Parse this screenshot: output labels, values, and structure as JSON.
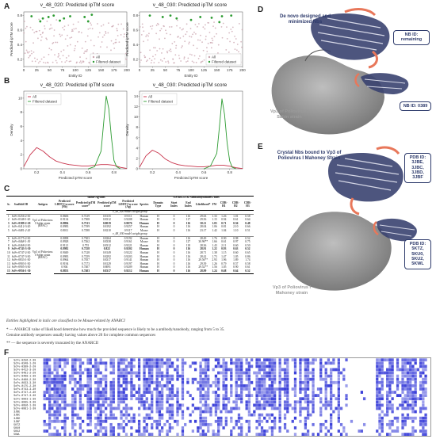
{
  "panels": {
    "A": "A",
    "B": "B",
    "C": "C",
    "D": "D",
    "E": "E",
    "F": "F"
  },
  "scatter_left": {
    "title": "v_48_020: Predicted ipTM score"
  },
  "scatter_right": {
    "title": "v_48_030: Predicted ipTM score"
  },
  "kde_left": {
    "title": "v_48_020: Predicted ipTM score"
  },
  "kde_right": {
    "title": "v_48_030: Predicted ipTM score"
  },
  "chart_data": [
    {
      "type": "scatter",
      "title": "v_48_020: Predicted ipTM score",
      "xlabel": "Entity ID",
      "ylabel": "Predicted ipTM score",
      "xlim": [
        0,
        200
      ],
      "ylim": [
        0.1,
        0.85
      ],
      "xticks": [
        0,
        25,
        50,
        75,
        100,
        125,
        150,
        175,
        200
      ],
      "yticks": [
        0.2,
        0.4,
        0.6,
        0.8
      ],
      "legend": [
        "All",
        "Filtered dataset"
      ],
      "legend_position": "bottom-right",
      "series": [
        {
          "name": "All",
          "color": "#c9a3ad"
        },
        {
          "name": "Filtered dataset",
          "color": "#2e9c33",
          "x": [
            15,
            32,
            37,
            48,
            58,
            70,
            78,
            90,
            118,
            125,
            132
          ],
          "y": [
            0.79,
            0.72,
            0.76,
            0.78,
            0.8,
            0.73,
            0.76,
            0.79,
            0.78,
            0.72,
            0.81
          ]
        }
      ]
    },
    {
      "type": "scatter",
      "title": "v_48_030: Predicted ipTM score",
      "xlabel": "Entity ID",
      "ylabel": "Predicted ipTM score",
      "xlim": [
        0,
        200
      ],
      "ylim": [
        0.1,
        0.85
      ],
      "xticks": [
        0,
        25,
        50,
        75,
        100,
        125,
        150,
        175,
        200
      ],
      "yticks": [
        0.2,
        0.4,
        0.6,
        0.8
      ],
      "legend": [
        "All",
        "Filtered dataset"
      ],
      "legend_position": "bottom-right",
      "series": [
        {
          "name": "All",
          "color": "#c9a3ad"
        },
        {
          "name": "Filtered dataset",
          "color": "#2e9c33",
          "x": [
            20,
            45,
            60,
            72,
            100,
            118,
            140,
            155,
            160,
            178
          ],
          "y": [
            0.8,
            0.78,
            0.8,
            0.76,
            0.74,
            0.78,
            0.77,
            0.71,
            0.79,
            0.8
          ]
        }
      ]
    },
    {
      "type": "line",
      "title": "v_48_020: Predicted ipTM score",
      "xlabel": "Predicted ipTM score",
      "ylabel": "Density",
      "xticks": [
        0.2,
        0.4,
        0.6,
        0.8
      ],
      "yticks": [
        0,
        2,
        4,
        6,
        8,
        10
      ],
      "xlim": [
        0.1,
        0.9
      ],
      "ylim": [
        0,
        11
      ],
      "legend": [
        "All",
        "Filtered dataset"
      ],
      "legend_position": "top-left",
      "series": [
        {
          "name": "All",
          "color": "#c8324a",
          "x": [
            0.1,
            0.15,
            0.2,
            0.25,
            0.3,
            0.35,
            0.4,
            0.45,
            0.5,
            0.55,
            0.6,
            0.65,
            0.7,
            0.75,
            0.8,
            0.85,
            0.9
          ],
          "y": [
            0.3,
            2.0,
            3.0,
            2.5,
            1.7,
            1.1,
            0.8,
            0.6,
            0.5,
            0.4,
            0.4,
            0.5,
            0.6,
            0.6,
            0.5,
            0.2,
            0.05
          ]
        },
        {
          "name": "Filtered dataset",
          "color": "#2e9c33",
          "x": [
            0.6,
            0.65,
            0.7,
            0.72,
            0.74,
            0.76,
            0.78,
            0.8,
            0.82,
            0.85
          ],
          "y": [
            0,
            0.3,
            2.5,
            6.5,
            10.3,
            8.5,
            4.5,
            1.2,
            0.3,
            0
          ]
        }
      ]
    },
    {
      "type": "line",
      "title": "v_48_030: Predicted ipTM score",
      "xlabel": "Predicted ipTM score",
      "ylabel": "Density",
      "xticks": [
        0.2,
        0.4,
        0.6,
        0.8
      ],
      "yticks": [
        0,
        2,
        4,
        6,
        8,
        10,
        12,
        14
      ],
      "xlim": [
        0.1,
        0.9
      ],
      "ylim": [
        0,
        15
      ],
      "legend": [
        "All",
        "Filtered dataset"
      ],
      "legend_position": "top-left",
      "series": [
        {
          "name": "All",
          "color": "#c8324a",
          "x": [
            0.1,
            0.15,
            0.2,
            0.25,
            0.3,
            0.35,
            0.4,
            0.45,
            0.5,
            0.55,
            0.6,
            0.65,
            0.7,
            0.75,
            0.8,
            0.85,
            0.9
          ],
          "y": [
            0.3,
            2.5,
            3.6,
            3.0,
            1.9,
            1.2,
            0.8,
            0.6,
            0.5,
            0.4,
            0.4,
            0.5,
            0.7,
            0.7,
            0.5,
            0.2,
            0.05
          ]
        },
        {
          "name": "Filtered dataset",
          "color": "#2e9c33",
          "x": [
            0.6,
            0.65,
            0.7,
            0.72,
            0.74,
            0.76,
            0.78,
            0.8,
            0.82,
            0.85
          ],
          "y": [
            0,
            0.5,
            3.0,
            8.0,
            13.5,
            10.5,
            5.0,
            1.5,
            0.3,
            0
          ]
        }
      ]
    }
  ],
  "colors": {
    "scfv_blue": "#3a3fd9",
    "nb_navy": "#2d3a6b",
    "nb_orange": "#e8775a",
    "vp3_grey": "#8f8f8f"
  },
  "panelD": {
    "caption": "De novo designed and minimized Nbs",
    "callout1": "NB ID: remaining",
    "callout2": "NB ID: 0389",
    "vp3": "Vp3 of Poliovirus I Sabin strain"
  },
  "panelE": {
    "caption": "Crystal Nbs bound to Vp3 of Poliovirus I Mahoney Strain",
    "callout1": "PDB ID: 3JBE, 3JBC, 3JBD, 3JBF",
    "callout2": "PDB ID: 5KTZ, 5KU0, 5KU2, 5KWL",
    "vp3": "Vp3 of Poliovirus I Mahoney strain"
  },
  "table": {
    "group_headers": [
      "",
      "",
      "",
      "tRold-Ag stats",
      "ANARCI3 & NanoBodyBuilder2 stats"
    ],
    "headers": [
      "№",
      "Scaffold ID",
      "Antigen",
      "Predicted LDDT-Cα score (Nb)",
      "Predicted ipTM score*",
      "Predicted pTM score",
      "Predicted LDDT-Cα score (Ag)",
      "Species",
      "Domain Type",
      "Start Index",
      "End Index",
      "Likelihood*",
      "FW",
      "CDR-H1",
      "CDR-H2",
      "CDR-H3"
    ],
    "section1": "v_48_020 model weight group",
    "section2": "v_48_030 model weight group",
    "antigen_label": "Vp3 of Poliovirus I Sabin strain (RFAC)",
    "rows1": [
      [
        "1",
        "ScFv-0256-2-30",
        "0.8606",
        "0.7219",
        "0.8135",
        "0.9111",
        "Human",
        "H",
        "0",
        "116",
        "29.63",
        "1.33",
        "1.26",
        "1.01",
        "0.58"
      ],
      [
        "2",
        "ScFv-0348-1-20",
        "0.9134",
        "0.7508",
        "0.8312",
        "0.9208",
        "Human",
        "H",
        "0",
        "117",
        "29.56",
        "1.15",
        "0.94",
        "0.61",
        "0.64"
      ],
      [
        "3",
        "ScFv-0389-2-20",
        "0.8894",
        "0.7513",
        "0.8019",
        "0.9076",
        "Human",
        "H",
        "0",
        "116",
        "30.11",
        "1.05",
        "0.71",
        "0.56",
        "0.48"
      ],
      [
        "4",
        "ScFv-0412-3-20",
        "0.8983",
        "0.7199",
        "0.8192",
        "0.9257",
        "Human",
        "H",
        "0",
        "116",
        "28.04",
        "1.06",
        "0.81",
        "2.10",
        "0.66"
      ],
      [
        "5",
        "ScFv-0481-2-20",
        "0.8011",
        "0.7298",
        "0.8210",
        "0.9117",
        "Mouse",
        "H",
        "0",
        "116",
        "23.17",
        "1.42",
        "1.04",
        "1.10",
        "0.51"
      ]
    ],
    "rows2": [
      [
        "6",
        "ScFv-0175-2-30",
        "0.8098",
        "0.7303",
        "0.8264",
        "0.9192",
        "Human",
        "H",
        "0",
        "116",
        "28.49",
        "1.76",
        "0.90",
        "0.98",
        "0.52"
      ],
      [
        "7",
        "ScFv-0468-1-30",
        "0.8928",
        "0.7262",
        "0.8338",
        "0.9161",
        "Mouse",
        "H",
        "0",
        "127",
        "30.96**",
        "1.66",
        "0.61",
        "0.97",
        "0.75"
      ],
      [
        "8",
        "ScFv-0468-2-30",
        "0.9121",
        "0.755",
        "0.8312",
        "0.9221",
        "Human",
        "H",
        "0",
        "118",
        "28.36",
        "1.43",
        "2.11",
        "0.60",
        "0.50"
      ],
      [
        "9",
        "ScFv-0743-3-30",
        "0.8982",
        "0.7258",
        "0.822",
        "0.9202",
        "Human",
        "H",
        "0",
        "116",
        "28.91",
        "1.22",
        "0.93",
        "0.63",
        "0.52"
      ],
      [
        "10",
        "ScFv-0747-2-30",
        "0.9049",
        "0.7128",
        "0.8149",
        "0.9222",
        "Human",
        "H",
        "0",
        "116",
        "28.71",
        "1.38",
        "1.15",
        "0.60",
        "0.65"
      ],
      [
        "11",
        "ScFv-0747-3-30",
        "0.8983",
        "0.7259",
        "0.8292",
        "0.9203",
        "Human",
        "H",
        "0",
        "116",
        "28.42",
        "1.73",
        "1.47",
        "1.05",
        "0.86"
      ],
      [
        "12",
        "ScFv-0833-1-30",
        "0.8964",
        "0.7057",
        "0.8317",
        "0.9141",
        "Human",
        "H",
        "0",
        "116",
        "29.56**",
        "2.93",
        "1.96",
        "1.89",
        "1.74"
      ],
      [
        "13",
        "ScFv-0903-1-30",
        "0.9194",
        "0.7173",
        "0.8129",
        "0.9197",
        "Human",
        "H",
        "0",
        "116",
        "29.39",
        "1.26",
        "0.79",
        "0.57",
        "0.58"
      ],
      [
        "14",
        "ScFv-0905-3-30",
        "0.904",
        "0.7407",
        "0.8091",
        "0.9209",
        "Human",
        "H",
        "0",
        "116",
        "29.52**",
        "1.56",
        "1.05",
        "0.90",
        "0.61"
      ],
      [
        "15",
        "ScFv-0956-1-30",
        "0.8833",
        "0.7403",
        "0.8317",
        "0.9212",
        "Human",
        "H",
        "0",
        "116",
        "28.99",
        "1.24",
        "0.68",
        "0.64",
        "0.52"
      ]
    ]
  },
  "notes": {
    "italic_note": "Entities highlighted in italic are classified to be Mouse-related by ANARCI",
    "note1": "* — ANARCII value of likelihood determine how much the provided sequence is likely to be a antibody/nanobody, ranging from 5 to 35.",
    "note2": "Genuine antibody sequences usually having values above 20 for complete common sequences",
    "note3": "** — the sequence is severely truncated by the ANARCII"
  },
  "alignment": {
    "labels": [
      "ScFv-0256-2-30",
      "ScFv-0348-1-20",
      "ScFv-0389-2-20",
      "ScFv-0412-3-20",
      "ScFv-0481-2-20",
      "ScFv-0468-1-30",
      "ScFv-0468-2-30",
      "ScFv-0833-3-30",
      "ScFv-0175-2-30",
      "ScFv-0743-3-30",
      "ScFv-0747-2-30",
      "ScFv-0747-3-30",
      "ScFv-0903-1-30",
      "ScFv-0905-3-30",
      "ScFv-0956-1-30",
      "ScFv-0981-1-30",
      "3JBE",
      "3JBC",
      "3JBD",
      "3JBF",
      "5KTZ",
      "5KU0",
      "5KU2",
      "5KWL"
    ]
  }
}
